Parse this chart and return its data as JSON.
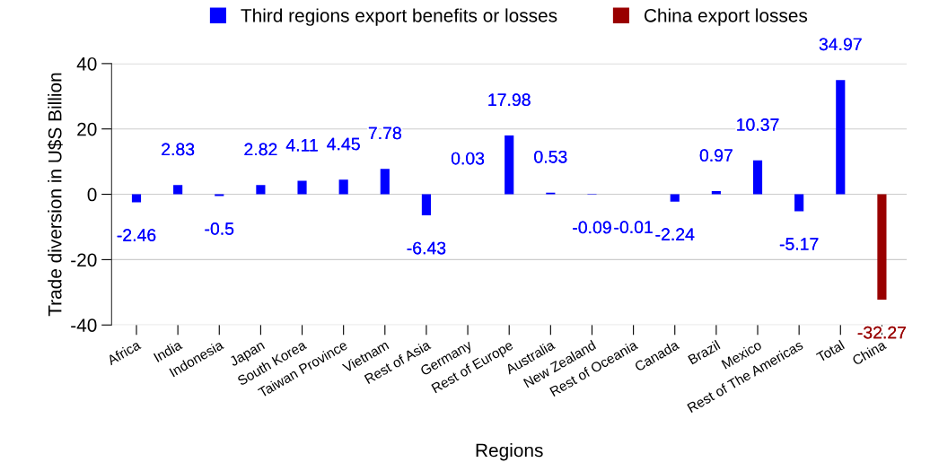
{
  "chart_data": {
    "type": "bar",
    "xlabel": "Regions",
    "ylabel": "Trade diversion in U$S Billion",
    "categories": [
      "Africa",
      "India",
      "Indonesia",
      "Japan",
      "South Korea",
      "Taiwan Province",
      "Vietnam",
      "Rest of Asia",
      "Germany",
      "Rest of Europe",
      "Australia",
      "New Zealand",
      "Rest of Oceania",
      "Canada",
      "Brazil",
      "Mexico",
      "Rest of The Americas",
      "Total",
      "China"
    ],
    "series": [
      {
        "name": "Third regions export benefits or losses",
        "color": "#0000ff",
        "values": [
          -2.46,
          2.83,
          -0.5,
          2.82,
          4.11,
          4.45,
          7.78,
          -6.43,
          0.03,
          17.98,
          0.53,
          -0.09,
          -0.01,
          -2.24,
          0.97,
          10.37,
          -5.17,
          34.97,
          null
        ]
      },
      {
        "name": "China export losses",
        "color": "#990000",
        "values": [
          null,
          null,
          null,
          null,
          null,
          null,
          null,
          null,
          null,
          null,
          null,
          null,
          null,
          null,
          null,
          null,
          null,
          null,
          -32.27
        ]
      }
    ],
    "ylim": [
      -40,
      40
    ],
    "yticks": [
      -40,
      -20,
      0,
      20,
      40
    ],
    "grid": "y",
    "legend": "top",
    "data_labels": true
  }
}
